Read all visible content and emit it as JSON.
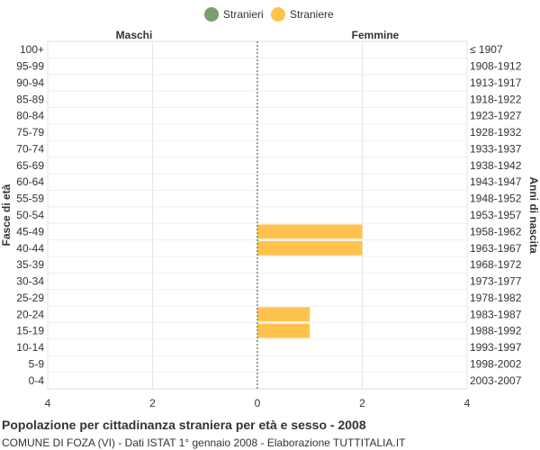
{
  "chart_data": {
    "type": "bar",
    "orientation": "horizontal-population-pyramid",
    "title": "Popolazione per cittadinanza straniera per età e sesso - 2008",
    "subtitle": "COMUNE DI FOZA (VI) - Dati ISTAT 1° gennaio 2008 - Elaborazione TUTTITALIA.IT",
    "left_header": "Maschi",
    "right_header": "Femmine",
    "ylabel_left": "Fasce di età",
    "ylabel_right": "Anni di nascita",
    "x_ticks": [
      "4",
      "2",
      "0",
      "2",
      "4"
    ],
    "xlim": [
      -4,
      4
    ],
    "legend_placement": "top-center",
    "grid": true,
    "age_groups": [
      "100+",
      "95-99",
      "90-94",
      "85-89",
      "80-84",
      "75-79",
      "70-74",
      "65-69",
      "60-64",
      "55-59",
      "50-54",
      "45-49",
      "40-44",
      "35-39",
      "30-34",
      "25-29",
      "20-24",
      "15-19",
      "10-14",
      "5-9",
      "0-4"
    ],
    "birth_years": [
      "≤ 1907",
      "1908-1912",
      "1913-1917",
      "1918-1922",
      "1923-1927",
      "1928-1932",
      "1933-1937",
      "1938-1942",
      "1943-1947",
      "1948-1952",
      "1953-1957",
      "1958-1962",
      "1963-1967",
      "1968-1972",
      "1973-1977",
      "1978-1982",
      "1983-1987",
      "1988-1992",
      "1993-1997",
      "1998-2002",
      "2003-2007"
    ],
    "series": [
      {
        "name": "Stranieri",
        "color": "#7a9e6e",
        "side": "left",
        "values": [
          0,
          0,
          0,
          0,
          0,
          0,
          0,
          0,
          0,
          0,
          0,
          0,
          0,
          0,
          0,
          0,
          0,
          0,
          0,
          0,
          0
        ]
      },
      {
        "name": "Straniere",
        "color": "#ffc34d",
        "side": "right",
        "values": [
          0,
          0,
          0,
          0,
          0,
          0,
          0,
          0,
          0,
          0,
          0,
          2,
          2,
          0,
          0,
          0,
          1,
          1,
          0,
          0,
          0
        ]
      }
    ]
  }
}
